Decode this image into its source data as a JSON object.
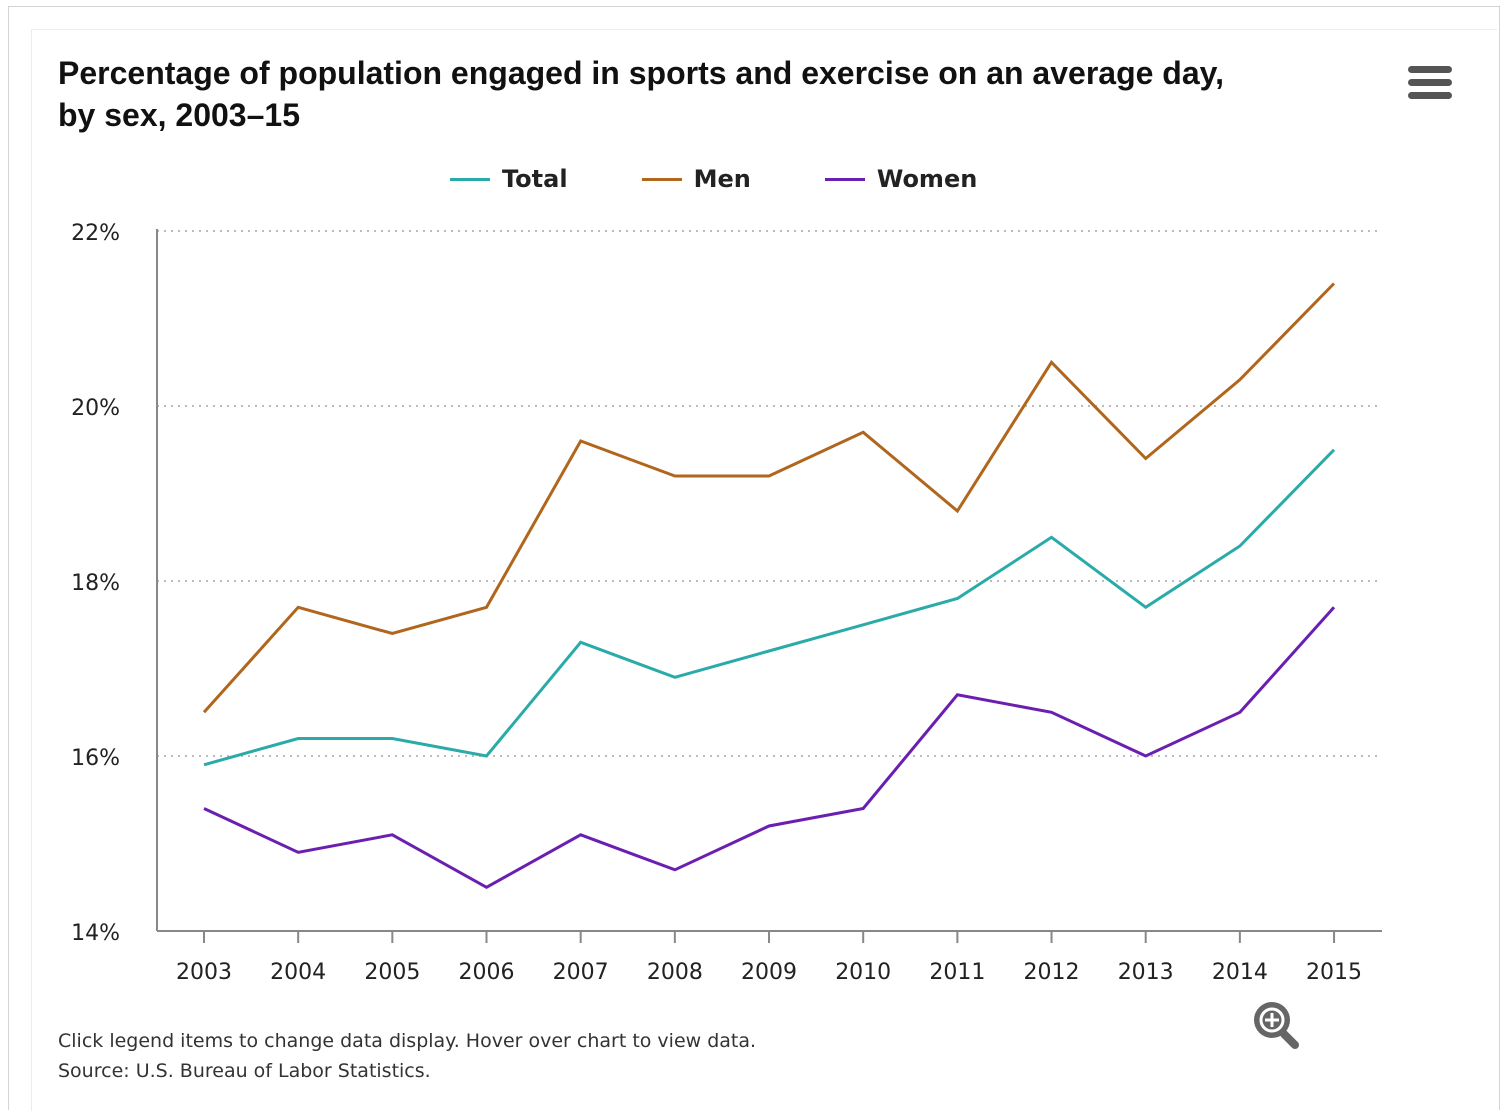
{
  "colors": {
    "total": "#2aaaa8",
    "men": "#b0661c",
    "women": "#6a1fb0"
  },
  "icons": {
    "menu": "hamburger-menu-icon",
    "zoom": "zoom-in-icon"
  },
  "header": {
    "title_line1": "Percentage of population engaged in sports and exercise on an average day,",
    "title_line2": "by sex, 2003–15"
  },
  "legend": {
    "items": [
      {
        "label": "Total",
        "color": "#2aaaa8"
      },
      {
        "label": "Men",
        "color": "#b0661c"
      },
      {
        "label": "Women",
        "color": "#6a1fb0"
      }
    ]
  },
  "footer": {
    "instructions": "Click legend items to change data display. Hover over chart to view data.",
    "source": "Source: U.S. Bureau of Labor Statistics."
  },
  "chart_data": {
    "type": "line",
    "title": "Percentage of population engaged in sports and exercise on an average day, by sex, 2003–15",
    "xlabel": "",
    "ylabel": "",
    "categories": [
      "2003",
      "2004",
      "2005",
      "2006",
      "2007",
      "2008",
      "2009",
      "2010",
      "2011",
      "2012",
      "2013",
      "2014",
      "2015"
    ],
    "ylim": [
      14,
      22
    ],
    "yticks": [
      14,
      16,
      18,
      20,
      22
    ],
    "ytick_labels": [
      "14%",
      "16%",
      "18%",
      "20%",
      "22%"
    ],
    "grid": true,
    "legend_position": "top-center",
    "series": [
      {
        "name": "Total",
        "color": "#2aaaa8",
        "values": [
          15.9,
          16.2,
          16.2,
          16.0,
          17.3,
          16.9,
          17.2,
          17.5,
          17.8,
          18.5,
          17.7,
          18.4,
          19.5
        ]
      },
      {
        "name": "Men",
        "color": "#b0661c",
        "values": [
          16.5,
          17.7,
          17.4,
          17.7,
          19.6,
          19.2,
          19.2,
          19.7,
          18.8,
          20.5,
          19.4,
          20.3,
          21.4
        ]
      },
      {
        "name": "Women",
        "color": "#6a1fb0",
        "values": [
          15.4,
          14.9,
          15.1,
          14.5,
          15.1,
          14.7,
          15.2,
          15.4,
          16.7,
          16.5,
          16.0,
          16.5,
          17.7
        ]
      }
    ]
  }
}
